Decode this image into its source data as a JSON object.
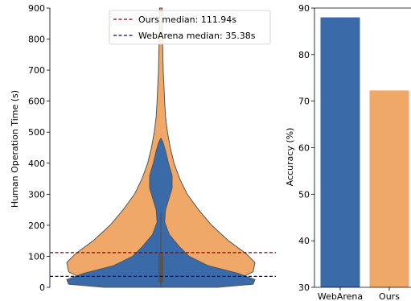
{
  "chart_data": [
    {
      "type": "violin",
      "ylabel": "Human Operation Time (s)",
      "ylim": [
        0,
        900
      ],
      "yticks": [
        0,
        100,
        200,
        300,
        400,
        500,
        600,
        700,
        800,
        900
      ],
      "series": [
        {
          "name": "Ours",
          "color": "#f0a868",
          "profile": [
            [
              0,
              0.38
            ],
            [
              20,
              0.78
            ],
            [
              50,
              0.98
            ],
            [
              80,
              1.0
            ],
            [
              110,
              0.9
            ],
            [
              150,
              0.72
            ],
            [
              200,
              0.54
            ],
            [
              250,
              0.4
            ],
            [
              300,
              0.28
            ],
            [
              350,
              0.2
            ],
            [
              400,
              0.14
            ],
            [
              450,
              0.1
            ],
            [
              500,
              0.07
            ],
            [
              550,
              0.05
            ],
            [
              600,
              0.04
            ],
            [
              700,
              0.025
            ],
            [
              800,
              0.018
            ],
            [
              900,
              0.014
            ]
          ]
        },
        {
          "name": "WebArena",
          "color": "#3b6aa8",
          "profile": [
            [
              0,
              0.6
            ],
            [
              10,
              0.98
            ],
            [
              25,
              1.0
            ],
            [
              45,
              0.82
            ],
            [
              70,
              0.5
            ],
            [
              100,
              0.3
            ],
            [
              130,
              0.2
            ],
            [
              170,
              0.09
            ],
            [
              210,
              0.04
            ],
            [
              250,
              0.05
            ],
            [
              290,
              0.09
            ],
            [
              320,
              0.12
            ],
            [
              360,
              0.12
            ],
            [
              400,
              0.08
            ],
            [
              440,
              0.05
            ],
            [
              470,
              0.02
            ],
            [
              480,
              0.0
            ]
          ]
        }
      ],
      "reference_lines": [
        {
          "label": "Ours median: 111.94s",
          "value": 111.94,
          "color": "#8b0000"
        },
        {
          "label": "WebArena median: 35.38s",
          "value": 35.38,
          "color": "#00008b"
        }
      ],
      "legend_position": "top-right"
    },
    {
      "type": "bar",
      "ylabel": "Accuracy (%)",
      "ylim": [
        30,
        90
      ],
      "yticks": [
        30,
        40,
        50,
        60,
        70,
        80,
        90
      ],
      "categories": [
        "WebArena",
        "Ours"
      ],
      "values": [
        88,
        72.3
      ],
      "colors": [
        "#3b6aa8",
        "#f0a868"
      ]
    }
  ]
}
